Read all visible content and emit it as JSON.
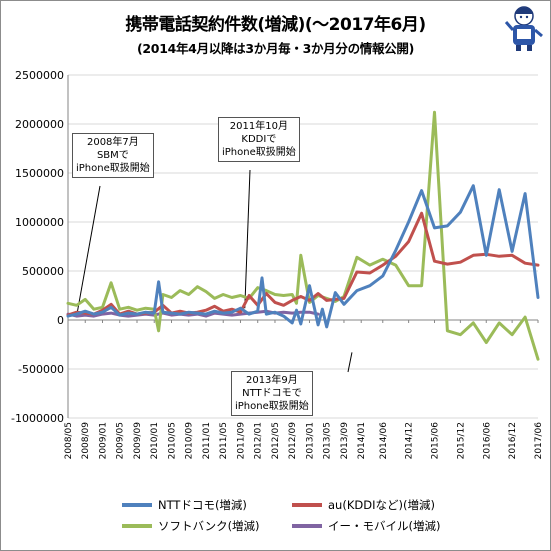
{
  "header": {
    "title": "携帯電話契約件数(増減)(〜2017年6月)",
    "subtitle": "(2014年4月以降は3か月毎・3か月分の情報公開)"
  },
  "annotations": [
    {
      "id": "sbm",
      "lines": [
        "2008年7月",
        "SBMで",
        "iPhone取扱開始"
      ]
    },
    {
      "id": "kddi",
      "lines": [
        "2011年10月",
        "KDDIで",
        "iPhone取扱開始"
      ]
    },
    {
      "id": "ntt",
      "lines": [
        "2013年9月",
        "NTTドコモで",
        "iPhone取扱開始"
      ]
    }
  ],
  "colors": {
    "ntt": "#4f81bd",
    "au": "#c0504d",
    "softbank": "#9bbb59",
    "emobile": "#8064a2",
    "grid": "#d9d9d9",
    "axis": "#868686"
  },
  "chart_data": {
    "type": "line",
    "title": "携帯電話契約件数(増減)(〜2017年6月)",
    "subtitle": "(2014年4月以降は3か月毎・3か月分の情報公開)",
    "ylim": [
      -1000000,
      2500000
    ],
    "yticks": [
      -1000000,
      -500000,
      0,
      500000,
      1000000,
      1500000,
      2000000,
      2500000
    ],
    "ytick_labels": [
      "-1000000",
      "-500000",
      "0",
      "500000",
      "1000000",
      "1500000",
      "2000000",
      "2500000"
    ],
    "grid": true,
    "legend_position": "bottom",
    "x_labels": [
      "2008/05",
      "2008/09",
      "2009/01",
      "2009/05",
      "2009/09",
      "2010/01",
      "2010/05",
      "2010/09",
      "2011/01",
      "2011/05",
      "2011/09",
      "2012/01",
      "2012/05",
      "2012/09",
      "2013/01",
      "2013/05",
      "2013/09",
      "2014/01",
      "2014/06",
      "2014/12",
      "2015/06",
      "2015/12",
      "2016/06",
      "2016/12",
      "2017/06"
    ],
    "series": [
      {
        "name": "NTTドコモ(増減)",
        "key": "ntt",
        "points": [
          [
            "2008/05",
            40000
          ],
          [
            "2008/07",
            60000
          ],
          [
            "2008/09",
            90000
          ],
          [
            "2008/11",
            60000
          ],
          [
            "2009/01",
            80000
          ],
          [
            "2009/03",
            130000
          ],
          [
            "2009/05",
            50000
          ],
          [
            "2009/07",
            70000
          ],
          [
            "2009/09",
            60000
          ],
          [
            "2009/11",
            80000
          ],
          [
            "2010/01",
            70000
          ],
          [
            "2010/02",
            390000
          ],
          [
            "2010/03",
            80000
          ],
          [
            "2010/05",
            70000
          ],
          [
            "2010/07",
            60000
          ],
          [
            "2010/09",
            80000
          ],
          [
            "2010/11",
            70000
          ],
          [
            "2011/01",
            60000
          ],
          [
            "2011/03",
            90000
          ],
          [
            "2011/05",
            70000
          ],
          [
            "2011/07",
            80000
          ],
          [
            "2011/09",
            120000
          ],
          [
            "2011/11",
            60000
          ],
          [
            "2012/01",
            90000
          ],
          [
            "2012/02",
            430000
          ],
          [
            "2012/03",
            60000
          ],
          [
            "2012/05",
            80000
          ],
          [
            "2012/07",
            40000
          ],
          [
            "2012/09",
            -30000
          ],
          [
            "2012/10",
            100000
          ],
          [
            "2012/11",
            -40000
          ],
          [
            "2013/01",
            350000
          ],
          [
            "2013/03",
            -50000
          ],
          [
            "2013/04",
            110000
          ],
          [
            "2013/05",
            -70000
          ],
          [
            "2013/07",
            280000
          ],
          [
            "2013/09",
            160000
          ],
          [
            "2013/12",
            300000
          ],
          [
            "2014/03",
            350000
          ],
          [
            "2014/06",
            450000
          ],
          [
            "2014/09",
            710000
          ],
          [
            "2014/12",
            1000000
          ],
          [
            "2015/03",
            1320000
          ],
          [
            "2015/06",
            940000
          ],
          [
            "2015/09",
            960000
          ],
          [
            "2015/12",
            1100000
          ],
          [
            "2016/03",
            1370000
          ],
          [
            "2016/06",
            660000
          ],
          [
            "2016/09",
            1330000
          ],
          [
            "2016/12",
            700000
          ],
          [
            "2017/03",
            1290000
          ],
          [
            "2017/06",
            230000
          ]
        ]
      },
      {
        "name": "au(KDDIなど)(増減)",
        "key": "au",
        "points": [
          [
            "2008/05",
            50000
          ],
          [
            "2008/07",
            80000
          ],
          [
            "2008/09",
            70000
          ],
          [
            "2008/11",
            60000
          ],
          [
            "2009/01",
            100000
          ],
          [
            "2009/03",
            160000
          ],
          [
            "2009/05",
            60000
          ],
          [
            "2009/07",
            90000
          ],
          [
            "2009/09",
            60000
          ],
          [
            "2009/11",
            70000
          ],
          [
            "2010/01",
            80000
          ],
          [
            "2010/03",
            150000
          ],
          [
            "2010/05",
            70000
          ],
          [
            "2010/07",
            90000
          ],
          [
            "2010/09",
            70000
          ],
          [
            "2010/11",
            80000
          ],
          [
            "2011/01",
            100000
          ],
          [
            "2011/03",
            140000
          ],
          [
            "2011/05",
            90000
          ],
          [
            "2011/07",
            110000
          ],
          [
            "2011/09",
            80000
          ],
          [
            "2011/11",
            250000
          ],
          [
            "2012/01",
            150000
          ],
          [
            "2012/03",
            270000
          ],
          [
            "2012/05",
            180000
          ],
          [
            "2012/07",
            150000
          ],
          [
            "2012/09",
            200000
          ],
          [
            "2012/11",
            240000
          ],
          [
            "2013/01",
            200000
          ],
          [
            "2013/03",
            270000
          ],
          [
            "2013/05",
            200000
          ],
          [
            "2013/07",
            210000
          ],
          [
            "2013/09",
            220000
          ],
          [
            "2013/12",
            490000
          ],
          [
            "2014/03",
            480000
          ],
          [
            "2014/06",
            560000
          ],
          [
            "2014/09",
            650000
          ],
          [
            "2014/12",
            800000
          ],
          [
            "2015/03",
            1090000
          ],
          [
            "2015/06",
            600000
          ],
          [
            "2015/09",
            570000
          ],
          [
            "2015/12",
            590000
          ],
          [
            "2016/03",
            660000
          ],
          [
            "2016/06",
            670000
          ],
          [
            "2016/09",
            650000
          ],
          [
            "2016/12",
            660000
          ],
          [
            "2017/03",
            580000
          ],
          [
            "2017/06",
            560000
          ]
        ]
      },
      {
        "name": "ソフトバンク(増減)",
        "key": "softbank",
        "points": [
          [
            "2008/05",
            170000
          ],
          [
            "2008/07",
            150000
          ],
          [
            "2008/09",
            210000
          ],
          [
            "2008/11",
            110000
          ],
          [
            "2009/01",
            130000
          ],
          [
            "2009/03",
            380000
          ],
          [
            "2009/05",
            110000
          ],
          [
            "2009/07",
            130000
          ],
          [
            "2009/09",
            100000
          ],
          [
            "2009/11",
            120000
          ],
          [
            "2010/01",
            110000
          ],
          [
            "2010/02",
            -110000
          ],
          [
            "2010/03",
            260000
          ],
          [
            "2010/05",
            230000
          ],
          [
            "2010/07",
            300000
          ],
          [
            "2010/09",
            260000
          ],
          [
            "2010/11",
            340000
          ],
          [
            "2011/01",
            290000
          ],
          [
            "2011/03",
            220000
          ],
          [
            "2011/05",
            260000
          ],
          [
            "2011/07",
            230000
          ],
          [
            "2011/09",
            250000
          ],
          [
            "2011/11",
            220000
          ],
          [
            "2012/01",
            330000
          ],
          [
            "2012/03",
            300000
          ],
          [
            "2012/05",
            260000
          ],
          [
            "2012/07",
            250000
          ],
          [
            "2012/09",
            260000
          ],
          [
            "2012/10",
            170000
          ],
          [
            "2012/11",
            660000
          ],
          [
            "2013/01",
            180000
          ],
          [
            "2013/03",
            250000
          ],
          [
            "2013/05",
            220000
          ],
          [
            "2013/07",
            190000
          ],
          [
            "2013/09",
            240000
          ],
          [
            "2013/12",
            640000
          ],
          [
            "2014/03",
            560000
          ],
          [
            "2014/06",
            620000
          ],
          [
            "2014/09",
            560000
          ],
          [
            "2014/12",
            350000
          ],
          [
            "2015/03",
            350000
          ],
          [
            "2015/06",
            2120000
          ],
          [
            "2015/09",
            -110000
          ],
          [
            "2015/12",
            -150000
          ],
          [
            "2016/03",
            -30000
          ],
          [
            "2016/06",
            -230000
          ],
          [
            "2016/09",
            -30000
          ],
          [
            "2016/12",
            -150000
          ],
          [
            "2017/03",
            30000
          ],
          [
            "2017/06",
            -400000
          ]
        ]
      },
      {
        "name": "イー・モバイル(増減)",
        "key": "emobile",
        "points": [
          [
            "2008/05",
            60000
          ],
          [
            "2008/07",
            40000
          ],
          [
            "2008/09",
            50000
          ],
          [
            "2008/11",
            40000
          ],
          [
            "2009/01",
            60000
          ],
          [
            "2009/03",
            70000
          ],
          [
            "2009/05",
            50000
          ],
          [
            "2009/07",
            40000
          ],
          [
            "2009/09",
            50000
          ],
          [
            "2009/11",
            60000
          ],
          [
            "2010/01",
            50000
          ],
          [
            "2010/03",
            70000
          ],
          [
            "2010/05",
            50000
          ],
          [
            "2010/07",
            60000
          ],
          [
            "2010/09",
            50000
          ],
          [
            "2010/11",
            60000
          ],
          [
            "2011/01",
            40000
          ],
          [
            "2011/03",
            70000
          ],
          [
            "2011/05",
            60000
          ],
          [
            "2011/07",
            50000
          ],
          [
            "2011/09",
            60000
          ],
          [
            "2011/11",
            70000
          ],
          [
            "2012/01",
            80000
          ],
          [
            "2012/03",
            90000
          ],
          [
            "2012/05",
            70000
          ],
          [
            "2012/07",
            80000
          ],
          [
            "2012/09",
            70000
          ],
          [
            "2012/11",
            80000
          ],
          [
            "2013/01",
            80000
          ],
          [
            "2013/03",
            60000
          ]
        ]
      }
    ]
  }
}
